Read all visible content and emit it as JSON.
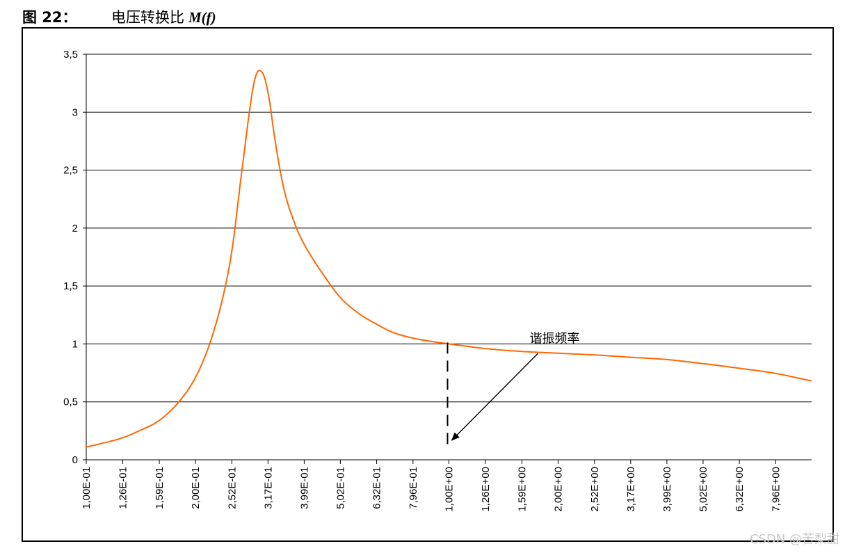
{
  "figure": {
    "number_label": "图 22：",
    "title_text": "电压转换比",
    "title_symbol": "M(f)"
  },
  "watermark": "CSDN @苦梨甜",
  "chart_data": {
    "type": "line",
    "x_scale": "log",
    "xlim": [
      0.1,
      10
    ],
    "ylim": [
      0,
      3.5
    ],
    "y_ticks": [
      0,
      0.5,
      1,
      1.5,
      2,
      2.5,
      3,
      3.5
    ],
    "y_tick_labels": [
      "0",
      "0,5",
      "1",
      "1,5",
      "2",
      "2,5",
      "3",
      "3,5"
    ],
    "x_ticks": [
      0.1,
      0.126,
      0.159,
      0.2,
      0.252,
      0.317,
      0.399,
      0.502,
      0.632,
      0.796,
      1.0,
      1.26,
      1.59,
      2.0,
      2.52,
      3.17,
      3.99,
      5.02,
      6.32,
      7.96
    ],
    "x_tick_labels": [
      "1,00E-01",
      "1,26E-01",
      "1,59E-01",
      "2,00E-01",
      "2,52E-01",
      "3,17E-01",
      "3,99E-01",
      "5,02E-01",
      "6,32E-01",
      "7,96E-01",
      "1,00E+00",
      "1,26E+00",
      "1,59E+00",
      "2,00E+00",
      "2,52E+00",
      "3,17E+00",
      "3,99E+00",
      "5,02E+00",
      "6,32E+00",
      "7,96E+00"
    ],
    "grid": "horizontal",
    "series": [
      {
        "color": "#ff6600",
        "x": [
          0.1,
          0.11,
          0.126,
          0.14,
          0.159,
          0.18,
          0.2,
          0.22,
          0.24,
          0.252,
          0.27,
          0.29,
          0.3,
          0.31,
          0.32,
          0.33,
          0.35,
          0.38,
          0.399,
          0.45,
          0.502,
          0.56,
          0.632,
          0.7,
          0.796,
          0.9,
          1.0,
          1.26,
          1.59,
          2.0,
          2.52,
          3.17,
          3.99,
          5.02,
          6.32,
          7.96,
          10.0
        ],
        "y": [
          0.11,
          0.14,
          0.19,
          0.25,
          0.34,
          0.5,
          0.71,
          1.02,
          1.45,
          1.8,
          2.55,
          3.25,
          3.36,
          3.3,
          3.1,
          2.8,
          2.35,
          2.0,
          1.86,
          1.6,
          1.4,
          1.27,
          1.17,
          1.1,
          1.05,
          1.02,
          1.0,
          0.96,
          0.935,
          0.92,
          0.905,
          0.885,
          0.865,
          0.83,
          0.79,
          0.745,
          0.68
        ]
      }
    ],
    "annotation": {
      "text": "谐振频率",
      "at_x": 1.0
    }
  }
}
